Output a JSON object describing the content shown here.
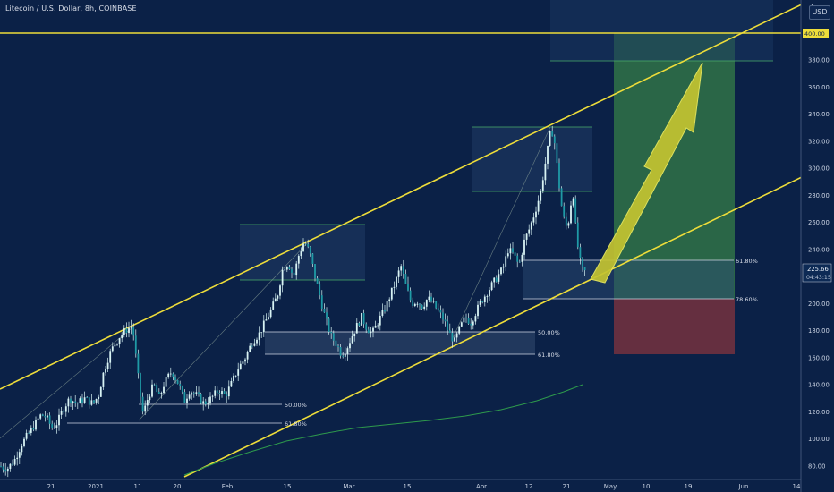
{
  "header": {
    "title": "Litecoin / U.S. Dollar, 8h, COINBASE"
  },
  "top_right_label": "USD",
  "colors": {
    "background": "#0b2147",
    "candle": "#d8f3f4",
    "channel": "#eedd3a",
    "ma": "#2e9a4c",
    "target_zone": "#2c6a48",
    "stop_zone": "#6a3040",
    "arrow": "#c4c431",
    "fib_line": "#cfd6e3"
  },
  "chart_data": {
    "type": "candlestick",
    "y_axis": {
      "ticks": [
        "80.00",
        "100.00",
        "120.00",
        "140.00",
        "160.00",
        "180.00",
        "200.00",
        "220.00",
        "240.00",
        "260.00",
        "280.00",
        "300.00",
        "320.00",
        "340.00",
        "360.00",
        "380.00"
      ],
      "top_cut_label": "4",
      "position": "right"
    },
    "x_axis": {
      "ticks": [
        "21",
        "2021",
        "11",
        "20",
        "Feb",
        "15",
        "Mar",
        "15",
        "Apr",
        "12",
        "21",
        "May",
        "10",
        "19",
        "Jun",
        "14"
      ]
    },
    "price_path": [
      [
        0,
        80
      ],
      [
        8,
        78
      ],
      [
        16,
        84
      ],
      [
        24,
        96
      ],
      [
        32,
        104
      ],
      [
        40,
        112
      ],
      [
        46,
        118
      ],
      [
        52,
        116
      ],
      [
        58,
        108
      ],
      [
        64,
        112
      ],
      [
        72,
        124
      ],
      [
        78,
        130
      ],
      [
        86,
        126
      ],
      [
        94,
        130
      ],
      [
        104,
        126
      ],
      [
        110,
        132
      ],
      [
        116,
        150
      ],
      [
        122,
        162
      ],
      [
        128,
        170
      ],
      [
        134,
        176
      ],
      [
        140,
        180
      ],
      [
        148,
        184
      ],
      [
        152,
        160
      ],
      [
        156,
        136
      ],
      [
        160,
        118
      ],
      [
        166,
        132
      ],
      [
        172,
        140
      ],
      [
        178,
        130
      ],
      [
        184,
        142
      ],
      [
        192,
        150
      ],
      [
        200,
        140
      ],
      [
        206,
        128
      ],
      [
        212,
        136
      ],
      [
        220,
        132
      ],
      [
        228,
        126
      ],
      [
        236,
        130
      ],
      [
        244,
        136
      ],
      [
        252,
        132
      ],
      [
        258,
        140
      ],
      [
        266,
        152
      ],
      [
        274,
        160
      ],
      [
        282,
        172
      ],
      [
        290,
        178
      ],
      [
        296,
        186
      ],
      [
        302,
        194
      ],
      [
        310,
        206
      ],
      [
        316,
        226
      ],
      [
        322,
        230
      ],
      [
        328,
        220
      ],
      [
        334,
        236
      ],
      [
        340,
        246
      ],
      [
        346,
        238
      ],
      [
        352,
        220
      ],
      [
        358,
        204
      ],
      [
        364,
        188
      ],
      [
        370,
        176
      ],
      [
        376,
        170
      ],
      [
        382,
        162
      ],
      [
        388,
        168
      ],
      [
        396,
        180
      ],
      [
        404,
        190
      ],
      [
        410,
        182
      ],
      [
        416,
        178
      ],
      [
        422,
        186
      ],
      [
        430,
        196
      ],
      [
        436,
        206
      ],
      [
        442,
        216
      ],
      [
        448,
        228
      ],
      [
        454,
        212
      ],
      [
        460,
        200
      ],
      [
        466,
        202
      ],
      [
        472,
        198
      ],
      [
        478,
        204
      ],
      [
        484,
        200
      ],
      [
        490,
        194
      ],
      [
        496,
        188
      ],
      [
        502,
        178
      ],
      [
        508,
        172
      ],
      [
        514,
        182
      ],
      [
        520,
        190
      ],
      [
        526,
        186
      ],
      [
        532,
        194
      ],
      [
        538,
        202
      ],
      [
        544,
        208
      ],
      [
        550,
        214
      ],
      [
        556,
        220
      ],
      [
        562,
        226
      ],
      [
        568,
        240
      ],
      [
        574,
        236
      ],
      [
        580,
        228
      ],
      [
        586,
        246
      ],
      [
        592,
        256
      ],
      [
        598,
        268
      ],
      [
        604,
        282
      ],
      [
        610,
        306
      ],
      [
        616,
        330
      ],
      [
        620,
        318
      ],
      [
        624,
        292
      ],
      [
        628,
        270
      ],
      [
        632,
        256
      ],
      [
        636,
        262
      ],
      [
        640,
        286
      ],
      [
        644,
        250
      ],
      [
        648,
        232
      ],
      [
        652,
        222
      ],
      [
        656,
        226
      ]
    ],
    "ma_path": [
      [
        206,
        531
      ],
      [
        240,
        518
      ],
      [
        280,
        505
      ],
      [
        320,
        493
      ],
      [
        360,
        485
      ],
      [
        400,
        478
      ],
      [
        440,
        474
      ],
      [
        480,
        470
      ],
      [
        520,
        465
      ],
      [
        560,
        458
      ],
      [
        600,
        448
      ],
      [
        630,
        438
      ],
      [
        651,
        430
      ]
    ],
    "channel_upper": {
      "from_date": "left edge",
      "description": "ascending resistance"
    },
    "fib_levels": [
      {
        "label": "50.00%"
      },
      {
        "label": "61.80%"
      },
      {
        "label": "50.00%"
      },
      {
        "label": "61.80%"
      },
      {
        "label": "61.80%"
      },
      {
        "label": "78.60%"
      }
    ],
    "badges": {
      "target": "400.00",
      "current_price": "225.66",
      "countdown": "04:43:15"
    }
  }
}
